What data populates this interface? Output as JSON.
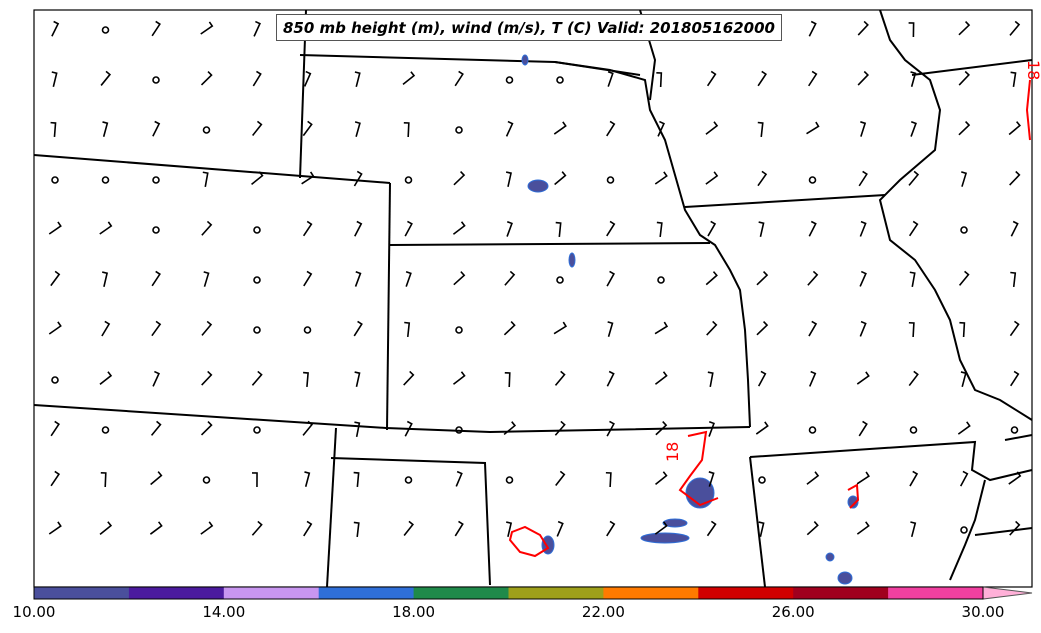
{
  "title": "850 mb height (m), wind (m/s), T (C) Valid: 201805162000",
  "contour_label": "18",
  "contour_label_right": "18",
  "colorbar": {
    "ticks": [
      "10.00",
      "14.00",
      "18.00",
      "22.00",
      "26.00",
      "30.00"
    ],
    "colors": [
      "#4a4f9c",
      "#4b1b9e",
      "#c896f0",
      "#2f6fd8",
      "#1f8a4a",
      "#9ea01a",
      "#ff7a00",
      "#d10000",
      "#a0001e",
      "#f040a0",
      "#ffb0d8"
    ]
  },
  "colors": {
    "border": "#000000",
    "contour": "#ff0000",
    "radar": "#4a4f9c"
  }
}
